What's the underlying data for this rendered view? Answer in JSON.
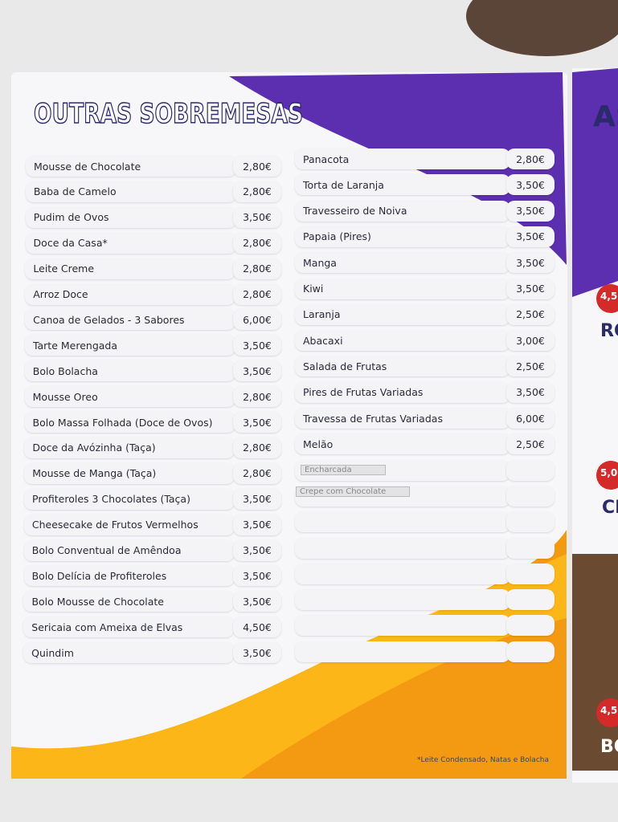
{
  "title": "OUTRAS SOBREMESAS",
  "left_items": [
    {
      "name": "Mousse de Chocolate",
      "price": "2,80€"
    },
    {
      "name": "Baba de Camelo",
      "price": "2,80€"
    },
    {
      "name": "Pudim de Ovos",
      "price": "3,50€"
    },
    {
      "name": "Doce da Casa*",
      "price": "2,80€"
    },
    {
      "name": "Leite Creme",
      "price": "2,80€"
    },
    {
      "name": "Arroz Doce",
      "price": "2,80€"
    },
    {
      "name": "Canoa de Gelados - 3 Sabores",
      "price": "6,00€"
    },
    {
      "name": "Tarte Merengada",
      "price": "3,50€"
    },
    {
      "name": "Bolo Bolacha",
      "price": "3,50€"
    },
    {
      "name": "Mousse Oreo",
      "price": "2,80€"
    },
    {
      "name": "Bolo Massa Folhada (Doce de Ovos)",
      "price": "3,50€"
    },
    {
      "name": "Doce da Avózinha (Taça)",
      "price": "2,80€"
    },
    {
      "name": "Mousse de Manga (Taça)",
      "price": "2,80€"
    },
    {
      "name": "Profiteroles 3 Chocolates (Taça)",
      "price": "3,50€"
    },
    {
      "name": "Cheesecake de Frutos Vermelhos",
      "price": "3,50€"
    },
    {
      "name": "Bolo Conventual de Amêndoa",
      "price": "3,50€"
    },
    {
      "name": "Bolo Delícia de Profiteroles",
      "price": "3,50€"
    },
    {
      "name": "Bolo Mousse de Chocolate",
      "price": "3,50€"
    },
    {
      "name": "Sericaia com Ameixa de Elvas",
      "price": "4,50€"
    },
    {
      "name": "Quindim",
      "price": "3,50€"
    }
  ],
  "right_items": [
    {
      "name": "Panacota",
      "price": "2,80€"
    },
    {
      "name": "Torta de Laranja",
      "price": "3,50€"
    },
    {
      "name": "Travesseiro de Noiva",
      "price": "3,50€"
    },
    {
      "name": "Papaia (Pires)",
      "price": "3,50€"
    },
    {
      "name": "Manga",
      "price": "3,50€"
    },
    {
      "name": "Kiwi",
      "price": "3,50€"
    },
    {
      "name": "Laranja",
      "price": "2,50€"
    },
    {
      "name": "Abacaxi",
      "price": "3,00€"
    },
    {
      "name": "Salada de Frutas",
      "price": "2,50€"
    },
    {
      "name": "Pires de Frutas Variadas",
      "price": "3,50€"
    },
    {
      "name": "Travessa de Frutas Variadas",
      "price": "6,00€"
    },
    {
      "name": "Melão",
      "price": "2,50€"
    }
  ],
  "covered_items": [
    "Encharcada",
    "Crepe com Chocolate"
  ],
  "footnote": "*Leite Condensado, Natas e Bolacha",
  "next_page": {
    "title": "AS",
    "fragments": [
      "4,5",
      "RO",
      "5,0",
      "CR",
      "4,5",
      "BO"
    ]
  }
}
